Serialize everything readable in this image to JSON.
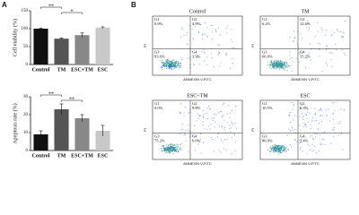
{
  "panel_labels": [
    "A",
    "B"
  ],
  "chart_data": [
    {
      "type": "bar",
      "ylabel": "Cell viability (%)",
      "categories": [
        "Control",
        "TM",
        "ESC+TM",
        "ESC"
      ],
      "values": [
        100,
        72,
        82,
        103
      ],
      "errors": [
        2,
        2,
        6,
        2
      ],
      "colors": [
        "#111111",
        "#555555",
        "#888888",
        "#c8c8c8"
      ],
      "ylim": [
        0,
        150
      ],
      "yticks": [
        0,
        50,
        100,
        150
      ],
      "annotations": [
        "**",
        "*"
      ]
    },
    {
      "type": "bar",
      "ylabel": "Apoptosis rate (%)",
      "categories": [
        "Control",
        "TM",
        "ESC+TM",
        "ESC"
      ],
      "values": [
        9,
        23,
        18,
        11
      ],
      "errors": [
        2,
        3,
        2,
        3
      ],
      "colors": [
        "#111111",
        "#555555",
        "#888888",
        "#c8c8c8"
      ],
      "ylim": [
        0,
        30
      ],
      "yticks": [
        0,
        10,
        20,
        30
      ],
      "annotations": [
        "**",
        "**"
      ]
    }
  ],
  "flow_plots": [
    {
      "title": "Control",
      "x_label": "ANNEXIN V-FITC",
      "y_label": "PI",
      "quadrants": [
        {
          "label": "G1",
          "value": "0.9%"
        },
        {
          "label": "G2",
          "value": "4.9%"
        },
        {
          "label": "G3",
          "value": "93.6%"
        },
        {
          "label": "G4",
          "value": "3.9%"
        }
      ]
    },
    {
      "title": "TM",
      "x_label": "ANNEXIN V-FITC",
      "y_label": "PI",
      "quadrants": [
        {
          "label": "G1",
          "value": "6.2%"
        },
        {
          "label": "G2",
          "value": "12.6%"
        },
        {
          "label": "G3",
          "value": "66.0%"
        },
        {
          "label": "G4",
          "value": "15.2%"
        }
      ]
    },
    {
      "title": "ESC+TM",
      "x_label": "ANNEXIN V-FITC",
      "y_label": "PI",
      "quadrants": [
        {
          "label": "G1",
          "value": "9.0%"
        },
        {
          "label": "G2",
          "value": "9.8%"
        },
        {
          "label": "G3",
          "value": "75.2%"
        },
        {
          "label": "G4",
          "value": "6.0%"
        }
      ]
    },
    {
      "title": "ESC",
      "x_label": "ANNEXIN V-FITC",
      "y_label": "PI",
      "quadrants": [
        {
          "label": "G1",
          "value": "10.5%"
        },
        {
          "label": "G2",
          "value": "6.3%"
        },
        {
          "label": "G3",
          "value": "80.9%"
        },
        {
          "label": "G4",
          "value": "2.4%"
        }
      ]
    }
  ]
}
